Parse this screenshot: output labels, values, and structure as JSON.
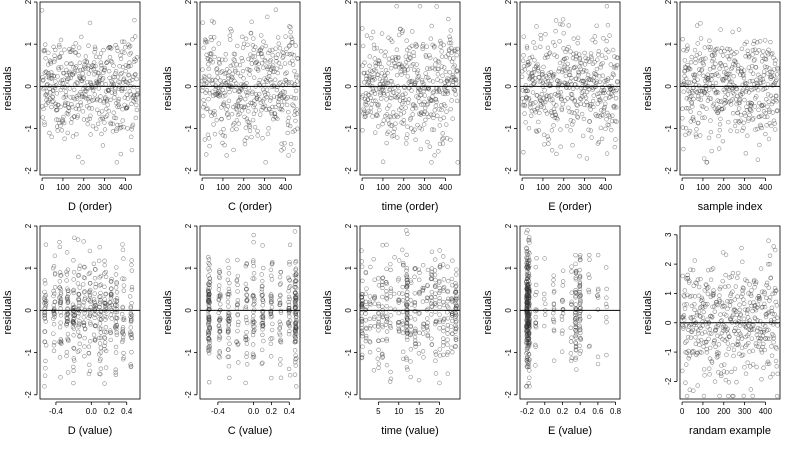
{
  "figure": {
    "panel_count": 10,
    "grid": "2 rows x 5 columns",
    "point_style": "open circles, semi-transparent gray",
    "reference_line": "horizontal line at residuals = 0"
  },
  "chart_data": [
    {
      "id": "p1",
      "type": "scatter",
      "xlabel": "D (order)",
      "ylabel": "residuals",
      "xlim": [
        -10,
        470
      ],
      "ylim": [
        -2.1,
        2
      ],
      "xticks": [
        0,
        100,
        200,
        300,
        400
      ],
      "yticks": [
        -2,
        -1,
        0,
        1,
        2
      ],
      "ytick_labels": [
        "-2",
        "-1",
        "0",
        "1",
        "2"
      ],
      "n_points": 460,
      "x_kind": "index",
      "y_sd": 0.65,
      "y_min": -1.8,
      "y_max": 1.9
    },
    {
      "id": "p2",
      "type": "scatter",
      "xlabel": "C (order)",
      "ylabel": "residuals",
      "xlim": [
        -10,
        470
      ],
      "ylim": [
        -2.1,
        2
      ],
      "xticks": [
        0,
        100,
        200,
        300,
        400
      ],
      "yticks": [
        -2,
        -1,
        0,
        1,
        2
      ],
      "ytick_labels": [
        "-2",
        "-1",
        "0",
        "1",
        "2"
      ],
      "n_points": 460,
      "x_kind": "index",
      "y_sd": 0.65,
      "y_min": -1.8,
      "y_max": 1.9
    },
    {
      "id": "p3",
      "type": "scatter",
      "xlabel": "time (order)",
      "ylabel": "residuals",
      "xlim": [
        -10,
        470
      ],
      "ylim": [
        -2.1,
        2
      ],
      "xticks": [
        0,
        100,
        200,
        300,
        400
      ],
      "yticks": [
        -2,
        -1,
        0,
        1,
        2
      ],
      "ytick_labels": [
        "-2",
        "-1",
        "0",
        "1",
        "2"
      ],
      "n_points": 460,
      "x_kind": "index",
      "y_sd": 0.65,
      "y_min": -1.8,
      "y_max": 1.9
    },
    {
      "id": "p4",
      "type": "scatter",
      "xlabel": "E (order)",
      "ylabel": "residuals",
      "xlim": [
        -10,
        470
      ],
      "ylim": [
        -2.1,
        2
      ],
      "xticks": [
        0,
        100,
        200,
        300,
        400
      ],
      "yticks": [
        -2,
        -1,
        0,
        1,
        2
      ],
      "ytick_labels": [
        "-2",
        "-1",
        "0",
        "1",
        "2"
      ],
      "n_points": 460,
      "x_kind": "index",
      "y_sd": 0.65,
      "y_min": -1.8,
      "y_max": 1.9
    },
    {
      "id": "p5",
      "type": "scatter",
      "xlabel": "sample index",
      "ylabel": "residuals",
      "xlim": [
        -10,
        470
      ],
      "ylim": [
        -2.1,
        2
      ],
      "xticks": [
        0,
        100,
        200,
        300,
        400
      ],
      "yticks": [
        -2,
        -1,
        0,
        1,
        2
      ],
      "ytick_labels": [
        "-2",
        "-1",
        "0",
        "1",
        "2"
      ],
      "n_points": 460,
      "x_kind": "index",
      "y_sd": 0.65,
      "y_min": -1.8,
      "y_max": 1.9
    },
    {
      "id": "p6",
      "type": "scatter",
      "xlabel": "D (value)",
      "ylabel": "residuals",
      "xlim": [
        -0.58,
        0.55
      ],
      "ylim": [
        -2.1,
        2
      ],
      "xticks": [
        -0.4,
        0.0,
        0.2,
        0.4
      ],
      "xtick_labels": [
        "-0.4",
        "0.0",
        "0.2",
        "0.4"
      ],
      "yticks": [
        -2,
        -1,
        0,
        1,
        2
      ],
      "ytick_labels": [
        "-2",
        "-1",
        "0",
        "1",
        "2"
      ],
      "n_points": 460,
      "x_kind": "discrete",
      "x_levels": [
        -0.52,
        -0.42,
        -0.35,
        -0.27,
        -0.2,
        -0.14,
        -0.08,
        -0.02,
        0.04,
        0.1,
        0.16,
        0.22,
        0.28,
        0.36,
        0.45
      ],
      "x_jitter": 0.012,
      "y_sd": 0.65,
      "y_min": -1.8,
      "y_max": 1.9
    },
    {
      "id": "p7",
      "type": "scatter",
      "xlabel": "C (value)",
      "ylabel": "residuals",
      "xlim": [
        -0.6,
        0.52
      ],
      "ylim": [
        -2.1,
        2
      ],
      "xticks": [
        -0.4,
        0.0,
        0.2,
        0.4
      ],
      "xtick_labels": [
        "-0.4",
        "0.0",
        "0.2",
        "0.4"
      ],
      "yticks": [
        -2,
        -1,
        0,
        1,
        2
      ],
      "ytick_labels": [
        "-2",
        "-1",
        "0",
        "1",
        "2"
      ],
      "n_points": 460,
      "x_kind": "discrete",
      "x_levels": [
        -0.5,
        -0.38,
        -0.28,
        -0.18,
        -0.08,
        0.0,
        0.1,
        0.2,
        0.3,
        0.4,
        0.47
      ],
      "x_level_weights": [
        5,
        2,
        2,
        2,
        2,
        2,
        2,
        2,
        2,
        2,
        5
      ],
      "x_jitter": 0.01,
      "y_sd": 0.65,
      "y_min": -1.8,
      "y_max": 1.9
    },
    {
      "id": "p8",
      "type": "scatter",
      "xlabel": "time (value)",
      "ylabel": "residuals",
      "xlim": [
        0.5,
        25
      ],
      "ylim": [
        -2.1,
        2
      ],
      "xticks": [
        5,
        10,
        15,
        20
      ],
      "yticks": [
        -2,
        -1,
        0,
        1,
        2
      ],
      "ytick_labels": [
        "-2",
        "-1",
        "0",
        "1",
        "2"
      ],
      "n_points": 460,
      "x_kind": "discrete",
      "x_levels": [
        1,
        2,
        3,
        4,
        5,
        6,
        7,
        8,
        9,
        10,
        11,
        12,
        13,
        14,
        15,
        16,
        17,
        18,
        19,
        20,
        21,
        22,
        23,
        24
      ],
      "x_level_weights": [
        2,
        1,
        1,
        1,
        1,
        1,
        1,
        1,
        1,
        1,
        1,
        4,
        1,
        1,
        1,
        1,
        1,
        1,
        1,
        1,
        1,
        1,
        1,
        3
      ],
      "x_jitter": 0.15,
      "y_sd": 0.65,
      "y_min": -1.8,
      "y_max": 1.9
    },
    {
      "id": "p9",
      "type": "scatter",
      "xlabel": "E (value)",
      "ylabel": "residuals",
      "xlim": [
        -0.28,
        0.85
      ],
      "ylim": [
        -2.1,
        2
      ],
      "xticks": [
        -0.2,
        0.0,
        0.2,
        0.4,
        0.6,
        0.8
      ],
      "xtick_labels": [
        "-0.2",
        "0.0",
        "0.2",
        "0.4",
        "0.6",
        "0.8"
      ],
      "yticks": [
        -2,
        -1,
        0,
        1,
        2
      ],
      "ytick_labels": [
        "-2",
        "-1",
        "0",
        "1",
        "2"
      ],
      "n_points": 460,
      "x_kind": "discrete",
      "x_levels": [
        -0.2,
        -0.18,
        -0.1,
        0.0,
        0.1,
        0.2,
        0.3,
        0.35,
        0.4,
        0.5,
        0.6,
        0.7
      ],
      "x_level_weights": [
        12,
        8,
        1,
        1,
        1,
        1,
        1,
        3,
        3,
        0.5,
        0.5,
        0.3
      ],
      "x_jitter": 0.008,
      "y_sd": 0.65,
      "y_min": -1.8,
      "y_max": 1.9
    },
    {
      "id": "p10",
      "type": "scatter",
      "xlabel": "randam example",
      "ylabel": "residuals",
      "xlim": [
        -10,
        470
      ],
      "ylim": [
        -2.6,
        3.3
      ],
      "xticks": [
        0,
        100,
        200,
        300,
        400
      ],
      "yticks": [
        -2,
        -1,
        0,
        1,
        2,
        3
      ],
      "ytick_labels": [
        "-2",
        "-1",
        "0",
        "1",
        "2",
        "3"
      ],
      "n_points": 460,
      "x_kind": "index",
      "y_sd": 1.0,
      "y_min": -2.5,
      "y_max": 3.0
    }
  ]
}
